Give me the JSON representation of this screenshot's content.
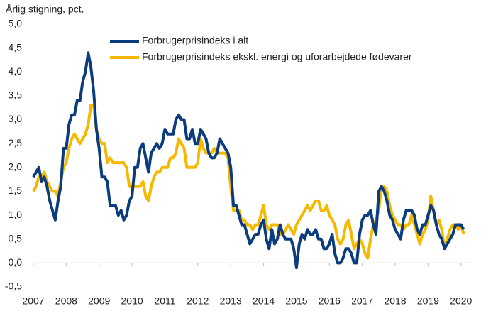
{
  "chart_data": {
    "type": "line",
    "ylabel": "Årlig stigning, pct.",
    "x": [
      2007,
      2007.083,
      2007.167,
      2007.25,
      2007.333,
      2007.417,
      2007.5,
      2007.583,
      2007.667,
      2007.75,
      2007.833,
      2007.917,
      2008,
      2008.083,
      2008.167,
      2008.25,
      2008.333,
      2008.417,
      2008.5,
      2008.583,
      2008.667,
      2008.75,
      2008.833,
      2008.917,
      2009,
      2009.083,
      2009.167,
      2009.25,
      2009.333,
      2009.417,
      2009.5,
      2009.583,
      2009.667,
      2009.75,
      2009.833,
      2009.917,
      2010,
      2010.083,
      2010.167,
      2010.25,
      2010.333,
      2010.417,
      2010.5,
      2010.583,
      2010.667,
      2010.75,
      2010.833,
      2010.917,
      2011,
      2011.083,
      2011.167,
      2011.25,
      2011.333,
      2011.417,
      2011.5,
      2011.583,
      2011.667,
      2011.75,
      2011.833,
      2011.917,
      2012,
      2012.083,
      2012.167,
      2012.25,
      2012.333,
      2012.417,
      2012.5,
      2012.583,
      2012.667,
      2012.75,
      2012.833,
      2012.917,
      2013,
      2013.083,
      2013.167,
      2013.25,
      2013.333,
      2013.417,
      2013.5,
      2013.583,
      2013.667,
      2013.75,
      2013.833,
      2013.917,
      2014,
      2014.083,
      2014.167,
      2014.25,
      2014.333,
      2014.417,
      2014.5,
      2014.583,
      2014.667,
      2014.75,
      2014.833,
      2014.917,
      2015,
      2015.083,
      2015.167,
      2015.25,
      2015.333,
      2015.417,
      2015.5,
      2015.583,
      2015.667,
      2015.75,
      2015.833,
      2015.917,
      2016,
      2016.083,
      2016.167,
      2016.25,
      2016.333,
      2016.417,
      2016.5,
      2016.583,
      2016.667,
      2016.75,
      2016.833,
      2016.917,
      2017,
      2017.083,
      2017.167,
      2017.25,
      2017.333,
      2017.417,
      2017.5,
      2017.583,
      2017.667,
      2017.75,
      2017.833,
      2017.917,
      2018,
      2018.083,
      2018.167,
      2018.25,
      2018.333,
      2018.417,
      2018.5,
      2018.583,
      2018.667,
      2018.75,
      2018.833,
      2018.917,
      2019,
      2019.083,
      2019.167,
      2019.25,
      2019.333,
      2019.417,
      2019.5,
      2019.583,
      2019.667,
      2019.75,
      2019.833,
      2019.917,
      2020,
      2020.083
    ],
    "series": [
      {
        "name": "Forbrugerprisindeks i alt",
        "color": "#0b3d7e",
        "values": [
          1.8,
          1.9,
          2.0,
          1.7,
          1.8,
          1.6,
          1.3,
          1.1,
          0.9,
          1.3,
          1.6,
          2.4,
          2.4,
          2.9,
          3.1,
          3.1,
          3.4,
          3.4,
          3.8,
          4.0,
          4.4,
          4.1,
          3.6,
          2.8,
          2.4,
          1.8,
          1.8,
          1.7,
          1.2,
          1.2,
          1.2,
          1.0,
          1.1,
          0.9,
          1.0,
          1.3,
          1.4,
          2.0,
          2.0,
          2.4,
          2.5,
          2.2,
          1.9,
          2.3,
          2.4,
          2.5,
          2.4,
          2.5,
          2.8,
          2.7,
          2.7,
          2.7,
          3.0,
          3.1,
          3.0,
          3.0,
          2.6,
          2.6,
          2.8,
          2.5,
          2.5,
          2.8,
          2.7,
          2.6,
          2.3,
          2.2,
          2.2,
          2.3,
          2.6,
          2.5,
          2.4,
          2.3,
          2.0,
          1.2,
          1.2,
          1.0,
          0.8,
          0.8,
          0.6,
          0.4,
          0.5,
          0.6,
          0.6,
          0.8,
          0.9,
          0.5,
          0.3,
          0.7,
          0.4,
          0.5,
          0.8,
          0.6,
          0.5,
          0.5,
          0.5,
          0.3,
          -0.1,
          0.4,
          0.6,
          0.5,
          0.7,
          0.6,
          0.6,
          0.7,
          0.5,
          0.5,
          0.3,
          0.3,
          0.4,
          0.6,
          0.2,
          0.0,
          0.0,
          0.1,
          0.3,
          0.3,
          0.2,
          0.0,
          0.0,
          0.6,
          0.9,
          1.0,
          1.0,
          1.1,
          0.8,
          0.6,
          1.5,
          1.6,
          1.5,
          1.3,
          1.0,
          0.9,
          0.7,
          0.6,
          0.5,
          0.9,
          1.1,
          1.1,
          1.1,
          1.0,
          0.7,
          0.6,
          0.8,
          0.8,
          1.0,
          1.2,
          1.1,
          0.8,
          0.6,
          0.5,
          0.3,
          0.4,
          0.5,
          0.6,
          0.8,
          0.8,
          0.8,
          0.7
        ]
      },
      {
        "name": "Forbrugerprisindeks ekskl. energi og uforarbejdede fødevarer",
        "color": "#f7b800",
        "values": [
          1.5,
          1.6,
          1.8,
          1.8,
          1.9,
          1.7,
          1.6,
          1.5,
          1.5,
          1.4,
          1.7,
          2.0,
          2.1,
          2.4,
          2.6,
          2.7,
          2.6,
          2.5,
          2.6,
          2.7,
          2.9,
          3.3,
          3.3,
          2.8,
          2.6,
          2.5,
          2.5,
          2.1,
          2.2,
          2.1,
          2.1,
          2.1,
          2.1,
          2.1,
          2.0,
          1.6,
          1.6,
          1.6,
          1.6,
          1.6,
          1.7,
          1.4,
          1.3,
          1.6,
          1.8,
          1.9,
          1.9,
          2.0,
          2.0,
          2.0,
          2.2,
          2.2,
          2.3,
          2.6,
          2.5,
          2.4,
          2.0,
          2.0,
          2.0,
          2.0,
          2.1,
          2.6,
          2.4,
          2.3,
          2.3,
          2.3,
          2.4,
          2.3,
          2.3,
          2.3,
          2.3,
          2.2,
          1.6,
          1.1,
          1.1,
          1.1,
          0.9,
          0.9,
          0.8,
          0.8,
          0.7,
          0.8,
          0.8,
          1.0,
          1.2,
          0.8,
          0.7,
          0.8,
          0.8,
          0.8,
          0.6,
          0.6,
          0.7,
          0.8,
          0.7,
          0.6,
          0.8,
          0.9,
          1.0,
          1.1,
          1.2,
          1.1,
          1.2,
          1.3,
          1.3,
          1.1,
          1.1,
          1.2,
          1.0,
          0.9,
          0.8,
          0.5,
          0.4,
          0.5,
          0.8,
          0.9,
          0.6,
          0.3,
          0.4,
          0.5,
          0.4,
          0.2,
          0.1,
          0.5,
          0.8,
          0.9,
          1.1,
          1.6,
          1.6,
          1.5,
          1.2,
          1.0,
          0.9,
          0.8,
          0.8,
          0.7,
          0.8,
          0.8,
          1.0,
          0.8,
          0.6,
          0.4,
          0.6,
          0.7,
          0.9,
          1.4,
          1.1,
          0.8,
          0.9,
          0.7,
          0.3,
          0.5,
          0.7,
          0.8,
          0.8,
          0.7,
          0.8,
          0.6
        ]
      }
    ],
    "xlim": [
      2007,
      2020.35
    ],
    "xticks": [
      2007,
      2008,
      2009,
      2010,
      2011,
      2012,
      2013,
      2014,
      2015,
      2016,
      2017,
      2018,
      2019,
      2020
    ],
    "ylim": [
      -0.5,
      5.0
    ],
    "yticks": [
      {
        "value": -0.5,
        "label": "-0,5"
      },
      {
        "value": 0,
        "label": "0,0"
      },
      {
        "value": 0.5,
        "label": "0,5"
      },
      {
        "value": 1,
        "label": "1,0"
      },
      {
        "value": 1.5,
        "label": "1,5"
      },
      {
        "value": 2,
        "label": "2,0"
      },
      {
        "value": 2.5,
        "label": "2,5"
      },
      {
        "value": 3,
        "label": "3,0"
      },
      {
        "value": 3.5,
        "label": "3,5"
      },
      {
        "value": 4,
        "label": "4,0"
      },
      {
        "value": 4.5,
        "label": "4,5"
      },
      {
        "value": 5,
        "label": "5,0"
      }
    ],
    "grid": false
  }
}
